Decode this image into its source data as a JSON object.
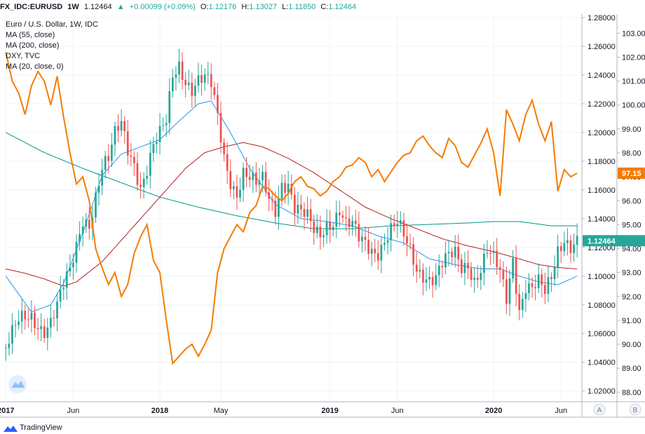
{
  "header": {
    "symbol": "FX_IDC:EURUSD",
    "interval": "1W",
    "last": "1.12464",
    "change": "+0.00099 (+0.09%)",
    "open_label": "O:",
    "open": "1.12176",
    "high_label": "H:",
    "high": "1.13027",
    "low_label": "L:",
    "low": "1.11850",
    "close_label": "C:",
    "close": "1.12464"
  },
  "legend": [
    "Euro / U.S. Dollar, 1W, IDC",
    "MA (55, close)",
    "MA (200, close)",
    "DXY, TVC",
    "MA (20, close, 0)"
  ],
  "footer": {
    "brand": "TradingView"
  },
  "chart_data": {
    "type": "line",
    "colors": {
      "up": "#26a69a",
      "down": "#ef5350",
      "ma55": "#2196f3",
      "ma200": "#b71c1c",
      "ma20": "#009688",
      "dxy": "#f57c00",
      "last_badge": "#26a69a",
      "dxy_badge": "#f57c00"
    },
    "y_axis_right": {
      "label_values": [
        "1.28000",
        "1.26000",
        "1.24000",
        "1.22000",
        "1.20000",
        "1.18000",
        "1.16000",
        "1.14000",
        "1.12000",
        "1.10000",
        "1.08000",
        "1.06000",
        "1.04000",
        "1.02000"
      ],
      "range": [
        1.0125,
        1.2825
      ],
      "last_badge": "1.12464"
    },
    "y_axis_dxy": {
      "label_values": [
        "103.00",
        "102.00",
        "101.00",
        "100.00",
        "99.00",
        "98.00",
        "97.00",
        "96.00",
        "95.00",
        "94.00",
        "93.00",
        "92.00",
        "91.00",
        "90.00",
        "89.00",
        "88.00"
      ],
      "range": [
        87.6,
        103.8
      ],
      "last_badge": "97.15"
    },
    "x_axis": {
      "labels": [
        "2017",
        "Jun",
        "2018",
        "May",
        "2019",
        "Jun",
        "2020",
        "Jun"
      ],
      "label_weeks": [
        0,
        21,
        48,
        67,
        101,
        122,
        152,
        173
      ],
      "total_weeks": 180,
      "buttons": [
        "A",
        "B"
      ]
    },
    "eurusd_close_anchors": [
      [
        0,
        1.05
      ],
      [
        4,
        1.065
      ],
      [
        8,
        1.072
      ],
      [
        12,
        1.066
      ],
      [
        14,
        1.07
      ],
      [
        16,
        1.078
      ],
      [
        18,
        1.09
      ],
      [
        20,
        1.1
      ],
      [
        22,
        1.12
      ],
      [
        24,
        1.142
      ],
      [
        26,
        1.14
      ],
      [
        28,
        1.158
      ],
      [
        30,
        1.175
      ],
      [
        32,
        1.178
      ],
      [
        34,
        1.195
      ],
      [
        36,
        1.205
      ],
      [
        38,
        1.19
      ],
      [
        40,
        1.182
      ],
      [
        42,
        1.165
      ],
      [
        44,
        1.175
      ],
      [
        46,
        1.188
      ],
      [
        48,
        1.195
      ],
      [
        50,
        1.205
      ],
      [
        52,
        1.24
      ],
      [
        54,
        1.25
      ],
      [
        56,
        1.24
      ],
      [
        58,
        1.232
      ],
      [
        60,
        1.235
      ],
      [
        62,
        1.234
      ],
      [
        64,
        1.23
      ],
      [
        66,
        1.21
      ],
      [
        68,
        1.185
      ],
      [
        70,
        1.17
      ],
      [
        72,
        1.16
      ],
      [
        74,
        1.172
      ],
      [
        76,
        1.165
      ],
      [
        78,
        1.16
      ],
      [
        80,
        1.165
      ],
      [
        82,
        1.155
      ],
      [
        84,
        1.15
      ],
      [
        86,
        1.168
      ],
      [
        88,
        1.165
      ],
      [
        90,
        1.145
      ],
      [
        92,
        1.14
      ],
      [
        94,
        1.138
      ],
      [
        96,
        1.132
      ],
      [
        98,
        1.132
      ],
      [
        100,
        1.14
      ],
      [
        102,
        1.14
      ],
      [
        104,
        1.145
      ],
      [
        106,
        1.132
      ],
      [
        108,
        1.132
      ],
      [
        110,
        1.125
      ],
      [
        112,
        1.125
      ],
      [
        114,
        1.122
      ],
      [
        116,
        1.12
      ],
      [
        118,
        1.125
      ],
      [
        120,
        1.13
      ],
      [
        122,
        1.133
      ],
      [
        124,
        1.125
      ],
      [
        126,
        1.118
      ],
      [
        128,
        1.108
      ],
      [
        130,
        1.105
      ],
      [
        132,
        1.1
      ],
      [
        134,
        1.098
      ],
      [
        136,
        1.105
      ],
      [
        138,
        1.11
      ],
      [
        140,
        1.115
      ],
      [
        142,
        1.108
      ],
      [
        144,
        1.112
      ],
      [
        146,
        1.1
      ],
      [
        148,
        1.105
      ],
      [
        150,
        1.115
      ],
      [
        152,
        1.108
      ],
      [
        154,
        1.1
      ],
      [
        156,
        1.085
      ],
      [
        158,
        1.115
      ],
      [
        160,
        1.08
      ],
      [
        162,
        1.095
      ],
      [
        164,
        1.09
      ],
      [
        166,
        1.092
      ],
      [
        168,
        1.085
      ],
      [
        170,
        1.098
      ],
      [
        172,
        1.12
      ],
      [
        174,
        1.13
      ],
      [
        176,
        1.124
      ],
      [
        178,
        1.125
      ]
    ],
    "ma55_anchors": [
      [
        0,
        1.1
      ],
      [
        8,
        1.075
      ],
      [
        14,
        1.08
      ],
      [
        18,
        1.095
      ],
      [
        24,
        1.13
      ],
      [
        30,
        1.17
      ],
      [
        36,
        1.185
      ],
      [
        42,
        1.19
      ],
      [
        48,
        1.195
      ],
      [
        54,
        1.208
      ],
      [
        60,
        1.22
      ],
      [
        64,
        1.222
      ],
      [
        70,
        1.2
      ],
      [
        76,
        1.175
      ],
      [
        84,
        1.15
      ],
      [
        92,
        1.14
      ],
      [
        100,
        1.138
      ],
      [
        108,
        1.135
      ],
      [
        116,
        1.128
      ],
      [
        124,
        1.123
      ],
      [
        132,
        1.112
      ],
      [
        140,
        1.108
      ],
      [
        148,
        1.105
      ],
      [
        154,
        1.105
      ],
      [
        160,
        1.1
      ],
      [
        166,
        1.096
      ],
      [
        172,
        1.094
      ],
      [
        178,
        1.1
      ]
    ],
    "ma200_anchors": [
      [
        0,
        1.105
      ],
      [
        6,
        1.102
      ],
      [
        12,
        1.098
      ],
      [
        18,
        1.093
      ],
      [
        22,
        1.096
      ],
      [
        30,
        1.11
      ],
      [
        40,
        1.135
      ],
      [
        48,
        1.155
      ],
      [
        56,
        1.175
      ],
      [
        62,
        1.186
      ],
      [
        68,
        1.19
      ],
      [
        74,
        1.193
      ],
      [
        80,
        1.19
      ],
      [
        88,
        1.182
      ],
      [
        96,
        1.172
      ],
      [
        104,
        1.16
      ],
      [
        112,
        1.148
      ],
      [
        120,
        1.14
      ],
      [
        128,
        1.133
      ],
      [
        136,
        1.126
      ],
      [
        144,
        1.121
      ],
      [
        152,
        1.117
      ],
      [
        160,
        1.112
      ],
      [
        166,
        1.108
      ],
      [
        172,
        1.106
      ],
      [
        178,
        1.105
      ]
    ],
    "ma20_anchors": [
      [
        0,
        1.2
      ],
      [
        12,
        1.186
      ],
      [
        24,
        1.175
      ],
      [
        36,
        1.165
      ],
      [
        48,
        1.155
      ],
      [
        60,
        1.148
      ],
      [
        72,
        1.142
      ],
      [
        84,
        1.137
      ],
      [
        96,
        1.133
      ],
      [
        108,
        1.133
      ],
      [
        120,
        1.135
      ],
      [
        132,
        1.136
      ],
      [
        144,
        1.137
      ],
      [
        152,
        1.138
      ],
      [
        160,
        1.138
      ],
      [
        170,
        1.135
      ],
      [
        178,
        1.135
      ]
    ],
    "dxy_anchors": [
      [
        0,
        102.2
      ],
      [
        2,
        101.0
      ],
      [
        4,
        100.5
      ],
      [
        6,
        99.6
      ],
      [
        8,
        100.8
      ],
      [
        10,
        101.4
      ],
      [
        12,
        101.0
      ],
      [
        14,
        100.0
      ],
      [
        16,
        101.2
      ],
      [
        18,
        99.5
      ],
      [
        20,
        98.0
      ],
      [
        22,
        96.7
      ],
      [
        24,
        97.0
      ],
      [
        26,
        96.0
      ],
      [
        28,
        94.0
      ],
      [
        30,
        93.2
      ],
      [
        32,
        92.5
      ],
      [
        34,
        93.0
      ],
      [
        36,
        92.0
      ],
      [
        38,
        92.5
      ],
      [
        40,
        93.8
      ],
      [
        42,
        94.5
      ],
      [
        44,
        95.0
      ],
      [
        46,
        93.5
      ],
      [
        48,
        93.0
      ],
      [
        50,
        91.0
      ],
      [
        52,
        89.2
      ],
      [
        54,
        89.5
      ],
      [
        56,
        89.8
      ],
      [
        58,
        90.0
      ],
      [
        60,
        89.5
      ],
      [
        62,
        90.0
      ],
      [
        64,
        90.6
      ],
      [
        66,
        93.0
      ],
      [
        68,
        94.0
      ],
      [
        70,
        94.5
      ],
      [
        72,
        95.0
      ],
      [
        74,
        94.7
      ],
      [
        76,
        95.5
      ],
      [
        78,
        95.8
      ],
      [
        80,
        96.6
      ],
      [
        82,
        96.5
      ],
      [
        84,
        96.2
      ],
      [
        86,
        96.0
      ],
      [
        88,
        96.3
      ],
      [
        90,
        96.8
      ],
      [
        92,
        97.0
      ],
      [
        94,
        96.6
      ],
      [
        96,
        96.5
      ],
      [
        98,
        96.2
      ],
      [
        100,
        96.4
      ],
      [
        102,
        96.8
      ],
      [
        104,
        97.0
      ],
      [
        106,
        97.4
      ],
      [
        108,
        97.5
      ],
      [
        110,
        97.8
      ],
      [
        112,
        97.6
      ],
      [
        114,
        97.0
      ],
      [
        116,
        97.3
      ],
      [
        118,
        96.8
      ],
      [
        120,
        97.2
      ],
      [
        122,
        97.6
      ],
      [
        124,
        97.9
      ],
      [
        126,
        98.0
      ],
      [
        128,
        98.5
      ],
      [
        130,
        98.7
      ],
      [
        132,
        98.3
      ],
      [
        134,
        98.0
      ],
      [
        136,
        97.8
      ],
      [
        138,
        98.6
      ],
      [
        140,
        98.3
      ],
      [
        142,
        97.6
      ],
      [
        144,
        97.4
      ],
      [
        146,
        97.9
      ],
      [
        148,
        98.4
      ],
      [
        150,
        99.0
      ],
      [
        152,
        98.0
      ],
      [
        154,
        96.2
      ],
      [
        156,
        99.8
      ],
      [
        158,
        99.2
      ],
      [
        160,
        98.5
      ],
      [
        162,
        99.6
      ],
      [
        164,
        100.2
      ],
      [
        166,
        99.2
      ],
      [
        168,
        98.5
      ],
      [
        170,
        99.3
      ],
      [
        172,
        96.4
      ],
      [
        174,
        97.3
      ],
      [
        176,
        97.0
      ],
      [
        178,
        97.15
      ]
    ]
  }
}
